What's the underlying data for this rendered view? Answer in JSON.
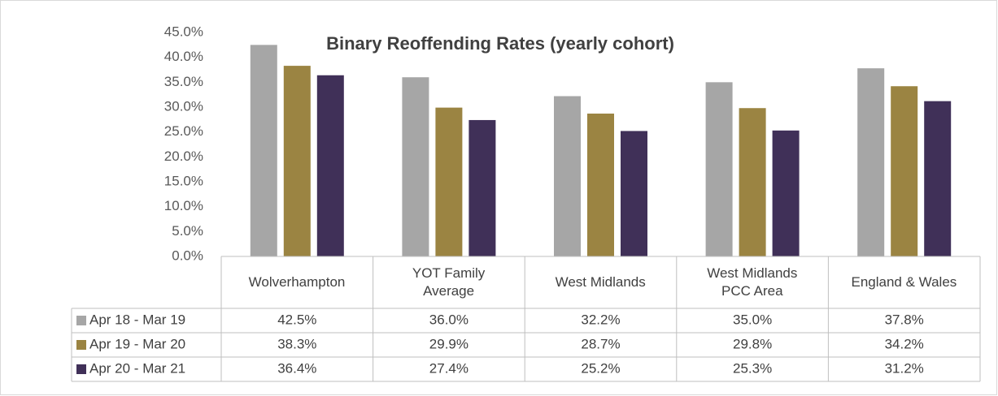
{
  "chart_data": {
    "type": "bar",
    "title": "Binary Reoffending Rates (yearly cohort)",
    "categories": [
      "Wolverhampton",
      "YOT Family Average",
      "West Midlands",
      "West Midlands PCC Area",
      "England & Wales"
    ],
    "series": [
      {
        "name": "Apr 18 - Mar 19",
        "color": "#a6a6a6",
        "values": [
          42.5,
          36.0,
          32.2,
          35.0,
          37.8
        ],
        "value_labels": [
          "42.5%",
          "36.0%",
          "32.2%",
          "35.0%",
          "37.8%"
        ]
      },
      {
        "name": "Apr 19 - Mar 20",
        "color": "#9b8442",
        "values": [
          38.3,
          29.9,
          28.7,
          29.8,
          34.2
        ],
        "value_labels": [
          "38.3%",
          "29.9%",
          "28.7%",
          "29.8%",
          "34.2%"
        ]
      },
      {
        "name": "Apr 20 - Mar 21",
        "color": "#403058",
        "values": [
          36.4,
          27.4,
          25.2,
          25.3,
          31.2
        ],
        "value_labels": [
          "36.4%",
          "27.4%",
          "25.2%",
          "25.3%",
          "31.2%"
        ]
      }
    ],
    "ylim": [
      0,
      45
    ],
    "yticks": [
      {
        "value": 0,
        "label": "0.0%"
      },
      {
        "value": 5,
        "label": "5.0%"
      },
      {
        "value": 10,
        "label": "10.0%"
      },
      {
        "value": 15,
        "label": "15.0%"
      },
      {
        "value": 20,
        "label": "20.0%"
      },
      {
        "value": 25,
        "label": "25.0%"
      },
      {
        "value": 30,
        "label": "30.0%"
      },
      {
        "value": 35,
        "label": "35.0%"
      },
      {
        "value": 40,
        "label": "40.0%"
      },
      {
        "value": 45,
        "label": "45.0%"
      }
    ]
  }
}
